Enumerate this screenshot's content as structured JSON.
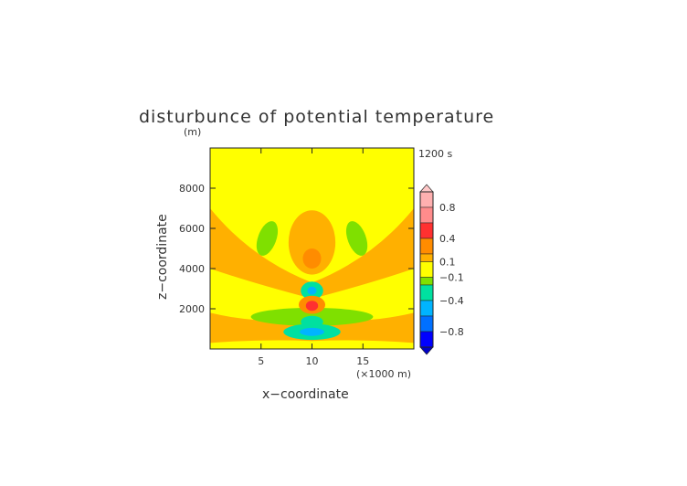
{
  "chart_data": {
    "type": "heatmap",
    "title": "disturbunce of potential temperature",
    "unit_label": "(m)",
    "time_label": "1200 s",
    "xlabel": "x−coordinate",
    "ylabel": "z−coordinate",
    "x_scale_label": "(×1000 m)",
    "xlim": [
      0,
      20
    ],
    "ylim": [
      0,
      10000
    ],
    "x_ticks": [
      "5",
      "10",
      "15"
    ],
    "x_tick_values": [
      5,
      10,
      15
    ],
    "y_ticks": [
      "2000",
      "4000",
      "6000",
      "8000"
    ],
    "y_tick_values": [
      2000,
      4000,
      6000,
      8000
    ],
    "colorbar": {
      "labels": [
        "0.8",
        "0.4",
        "0.1",
        "−0.1",
        "−0.4",
        "−0.8"
      ],
      "label_values": [
        0.8,
        0.4,
        0.1,
        -0.1,
        -0.4,
        -0.8
      ],
      "range": [
        -1.0,
        1.0
      ],
      "bands": [
        {
          "from": 0.8,
          "to": 1.0,
          "color": "#ffb0b0"
        },
        {
          "from": 0.6,
          "to": 0.8,
          "color": "#ff8c8c"
        },
        {
          "from": 0.4,
          "to": 0.6,
          "color": "#ff3030"
        },
        {
          "from": 0.2,
          "to": 0.4,
          "color": "#ff8c00"
        },
        {
          "from": 0.1,
          "to": 0.2,
          "color": "#ffb000"
        },
        {
          "from": -0.1,
          "to": 0.1,
          "color": "#ffff00"
        },
        {
          "from": -0.2,
          "to": -0.1,
          "color": "#7fe000"
        },
        {
          "from": -0.4,
          "to": -0.2,
          "color": "#00e0a0"
        },
        {
          "from": -0.6,
          "to": -0.4,
          "color": "#00b4ff"
        },
        {
          "from": -0.8,
          "to": -0.6,
          "color": "#0070ff"
        },
        {
          "from": -1.0,
          "to": -0.8,
          "color": "#0000ff"
        }
      ],
      "over_color": "#ffc8c8",
      "under_color": "#0000c8"
    },
    "grid": false,
    "legend_position": "right"
  }
}
